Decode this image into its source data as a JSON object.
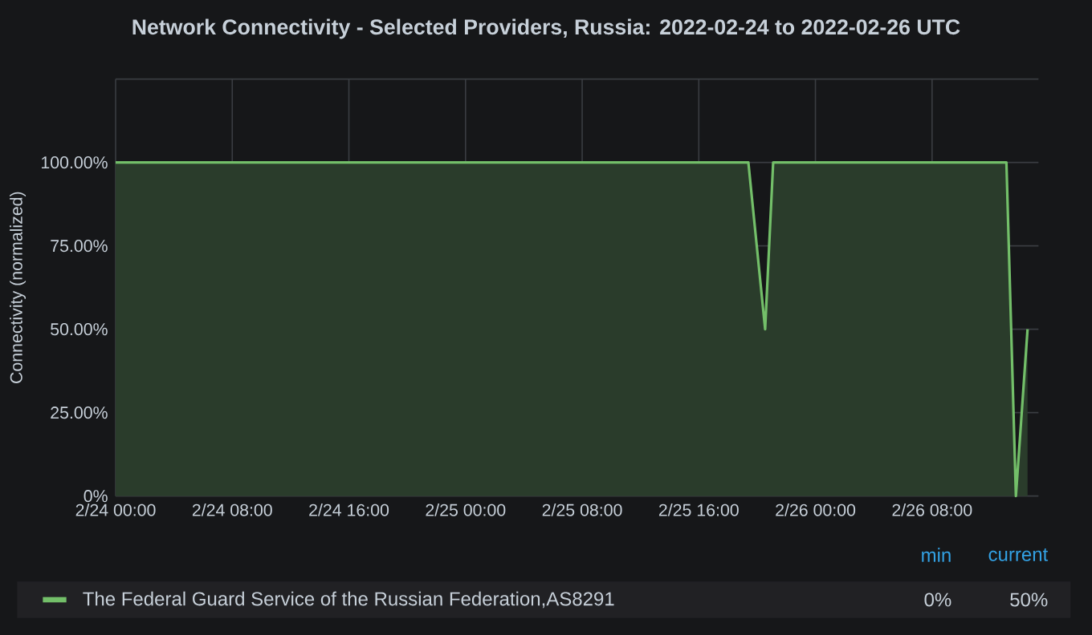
{
  "chart_data": {
    "type": "area",
    "title": "Network Connectivity - Selected Providers, Russia: 2022-02-24 to 2022-02-26 UTC",
    "ylabel": "Connectivity (normalized)",
    "x": [
      "2022-02-24T00:00",
      "2022-02-25T19:24",
      "2022-02-25T20:33",
      "2022-02-25T21:06",
      "2022-02-26T13:06",
      "2022-02-26T13:45",
      "2022-02-26T14:33"
    ],
    "series": [
      {
        "name": "The Federal Guard Service of the Russian Federation,AS8291",
        "color": "#73bf69",
        "values": [
          100,
          100,
          50,
          100,
          100,
          0,
          50
        ]
      }
    ],
    "xlim": [
      "2022-02-24T00:00",
      "2022-02-26T15:18"
    ],
    "xticks": [
      {
        "value": "2022-02-24T00:00",
        "label": "2/24 00:00"
      },
      {
        "value": "2022-02-24T08:00",
        "label": "2/24 08:00"
      },
      {
        "value": "2022-02-24T16:00",
        "label": "2/24 16:00"
      },
      {
        "value": "2022-02-25T00:00",
        "label": "2/25 00:00"
      },
      {
        "value": "2022-02-25T08:00",
        "label": "2/25 08:00"
      },
      {
        "value": "2022-02-25T16:00",
        "label": "2/25 16:00"
      },
      {
        "value": "2022-02-26T00:00",
        "label": "2/26 00:00"
      },
      {
        "value": "2022-02-26T08:00",
        "label": "2/26 08:00"
      }
    ],
    "ylim": [
      0,
      125
    ],
    "yticks": [
      {
        "value": 0,
        "label": "0%"
      },
      {
        "value": 25,
        "label": "25.00%"
      },
      {
        "value": 50,
        "label": "50.00%"
      },
      {
        "value": 75,
        "label": "75.00%"
      },
      {
        "value": 100,
        "label": "100.00%"
      },
      {
        "value": 125,
        "label": null
      }
    ],
    "grid": true,
    "legend": "bottom",
    "annotations": [
      "min",
      "current",
      "0%",
      "50%"
    ]
  }
}
